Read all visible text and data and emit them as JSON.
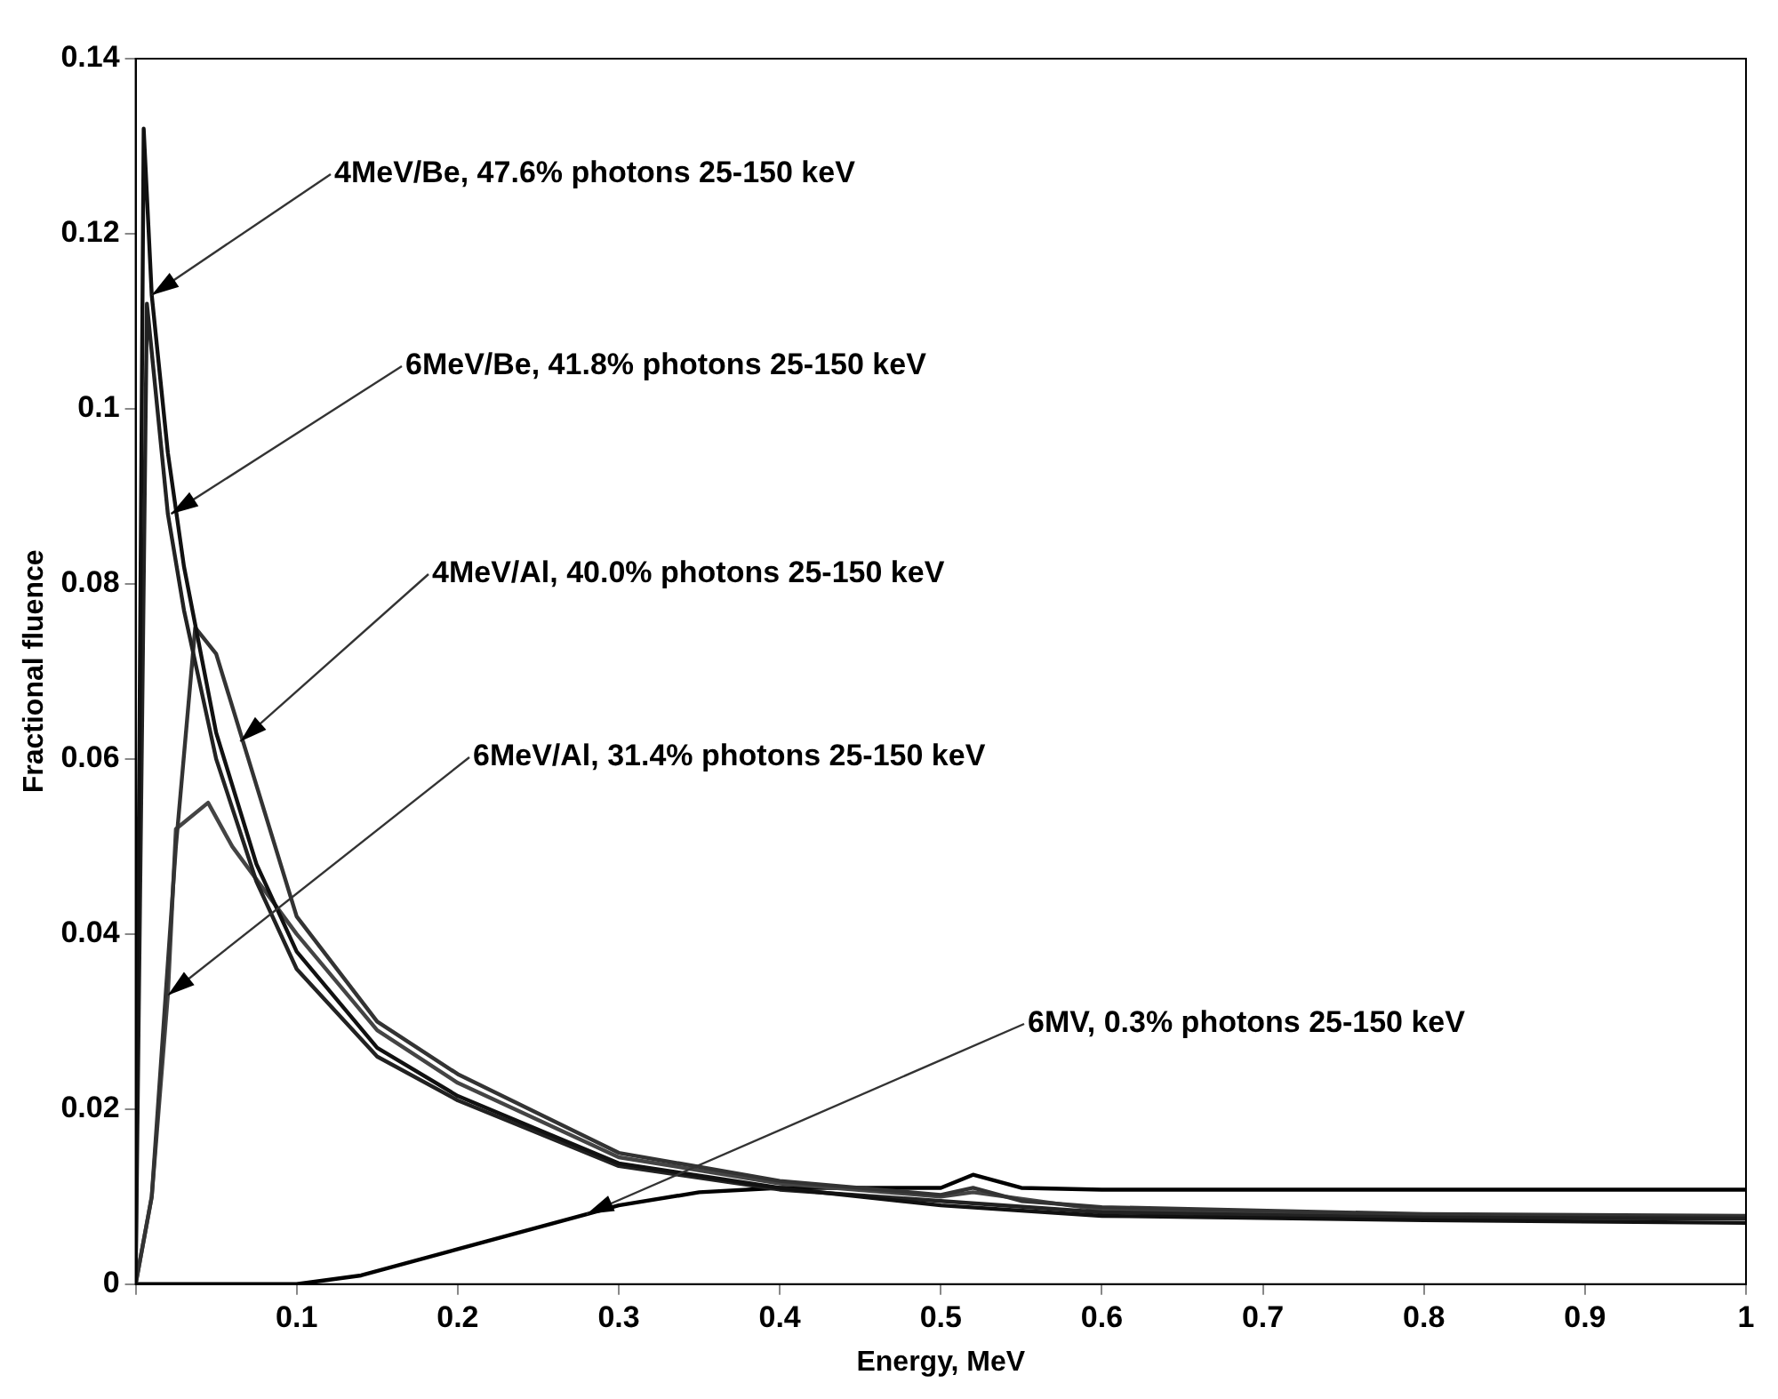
{
  "chart_data": {
    "type": "line",
    "xlabel": "Energy, MeV",
    "ylabel": "Fractional fluence",
    "xlim": [
      0,
      1
    ],
    "ylim": [
      0,
      0.14
    ],
    "xticks": [
      {
        "value": 0,
        "label": null
      },
      0.1,
      0.2,
      0.3,
      0.4,
      0.5,
      0.6,
      0.7,
      0.8,
      0.9,
      1
    ],
    "yticks": [
      0,
      0.02,
      0.04,
      0.06,
      0.08,
      0.1,
      0.12,
      0.14
    ],
    "grid": false,
    "legend": false,
    "marker": "none",
    "line_style": "solid",
    "series": [
      {
        "color": "#111111",
        "x": [
          0,
          0.005,
          0.01,
          0.02,
          0.03,
          0.05,
          0.075,
          0.1,
          0.15,
          0.2,
          0.3,
          0.4,
          0.5,
          0.6,
          0.8,
          1
        ],
        "values": [
          0,
          0.132,
          0.113,
          0.095,
          0.082,
          0.063,
          0.048,
          0.038,
          0.027,
          0.0215,
          0.0138,
          0.011,
          0.009,
          0.0078,
          0.0073,
          0.007
        ]
      },
      {
        "color": "#222222",
        "x": [
          0,
          0.007,
          0.02,
          0.03,
          0.05,
          0.075,
          0.1,
          0.15,
          0.2,
          0.3,
          0.4,
          0.5,
          0.6,
          0.8,
          1
        ],
        "values": [
          0,
          0.112,
          0.088,
          0.077,
          0.06,
          0.046,
          0.036,
          0.026,
          0.021,
          0.0135,
          0.0108,
          0.0095,
          0.0082,
          0.0076,
          0.0075
        ]
      },
      {
        "color": "#333333",
        "x": [
          0,
          0.01,
          0.025,
          0.037,
          0.05,
          0.065,
          0.1,
          0.15,
          0.2,
          0.3,
          0.4,
          0.5,
          0.52,
          0.55,
          0.6,
          0.8,
          1
        ],
        "values": [
          0,
          0.01,
          0.05,
          0.075,
          0.072,
          0.063,
          0.042,
          0.03,
          0.024,
          0.015,
          0.0118,
          0.0102,
          0.011,
          0.0095,
          0.0088,
          0.008,
          0.0078
        ]
      },
      {
        "color": "#444444",
        "x": [
          0,
          0.01,
          0.02,
          0.025,
          0.045,
          0.06,
          0.1,
          0.15,
          0.2,
          0.3,
          0.4,
          0.5,
          0.52,
          0.6,
          0.8,
          1
        ],
        "values": [
          0,
          0.01,
          0.033,
          0.052,
          0.055,
          0.05,
          0.04,
          0.029,
          0.023,
          0.0145,
          0.0115,
          0.01,
          0.0105,
          0.0085,
          0.0078,
          0.0076
        ]
      },
      {
        "color": "#000000",
        "x": [
          0,
          0.1,
          0.14,
          0.2,
          0.28,
          0.3,
          0.35,
          0.4,
          0.5,
          0.52,
          0.55,
          0.6,
          0.8,
          1
        ],
        "values": [
          0,
          0,
          0.001,
          0.004,
          0.008,
          0.009,
          0.0105,
          0.011,
          0.011,
          0.0125,
          0.011,
          0.0108,
          0.0108,
          0.0108
        ]
      }
    ],
    "annotations": [
      {
        "text": "4MeV/Be, 47.6% photons 25-150 keV",
        "x": 0.01,
        "y": 0.113
      },
      {
        "text": "6MeV/Be, 41.8% photons 25-150 keV",
        "x": 0.022,
        "y": 0.088
      },
      {
        "text": "4MeV/Al, 40.0% photons 25-150 keV",
        "x": 0.065,
        "y": 0.062
      },
      {
        "text": "6MeV/Al, 31.4% photons 25-150 keV",
        "x": 0.02,
        "y": 0.033
      },
      {
        "text": "6MV, 0.3% photons 25-150 keV",
        "x": 0.28,
        "y": 0.008
      }
    ]
  }
}
